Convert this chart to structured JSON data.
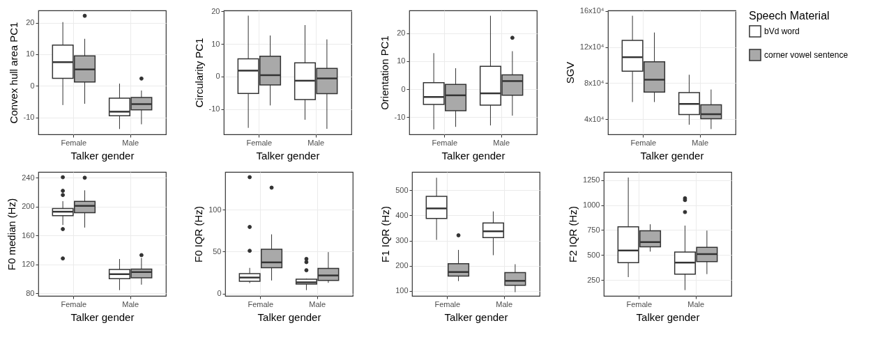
{
  "chart_data": [
    {
      "type": "box",
      "categories": [
        "Female",
        "Male"
      ],
      "xlabel": "Talker gender",
      "ylabel": "Convex hull area PC1",
      "ylim": [
        -15.4,
        23.9
      ],
      "yticks": [
        -10,
        0,
        10,
        20
      ],
      "grid": true,
      "legend": "right",
      "legend_title": "Speech Material",
      "series": [
        {
          "name": "bVd word",
          "color": "#ffffff",
          "boxes": [
            {
              "low": -6.1,
              "q1": 2.4,
              "median": 7.5,
              "q3": 12.9,
              "high": 20.2
            },
            {
              "low": -13.7,
              "q1": -9.5,
              "median": -8.2,
              "q3": -3.9,
              "high": 0.7
            }
          ]
        },
        {
          "name": "corner vowel sentence",
          "color": "#a9a9a9",
          "boxes": [
            {
              "low": -5.7,
              "q1": 1.2,
              "median": 5.2,
              "q3": 9.5,
              "high": 14.9,
              "outliers": [
                22.2
              ]
            },
            {
              "low": -12.2,
              "q1": -7.6,
              "median": -5.8,
              "q3": -3.7,
              "high": -1.5,
              "outliers": [
                2.3
              ]
            }
          ]
        }
      ]
    },
    {
      "type": "box",
      "categories": [
        "Female",
        "Male"
      ],
      "xlabel": "Talker gender",
      "ylabel": "Circularity PC1",
      "ylim": [
        -17.8,
        20.3
      ],
      "yticks": [
        -10,
        0,
        10,
        20
      ],
      "grid": true,
      "series": [
        {
          "color": "#ffffff",
          "boxes": [
            {
              "low": -15.8,
              "q1": -5.2,
              "median": 1.8,
              "q3": 5.4,
              "high": 18.7
            },
            {
              "low": -13.3,
              "q1": -7.1,
              "median": -1.3,
              "q3": 4.2,
              "high": 15.8
            }
          ]
        },
        {
          "color": "#a9a9a9",
          "boxes": [
            {
              "low": -8.9,
              "q1": -2.6,
              "median": 0.4,
              "q3": 6.2,
              "high": 12.6
            },
            {
              "low": -16.1,
              "q1": -5.3,
              "median": -0.6,
              "q3": 2.5,
              "high": 11.4
            }
          ]
        }
      ]
    },
    {
      "type": "box",
      "categories": [
        "Female",
        "Male"
      ],
      "xlabel": "Talker gender",
      "ylabel": "Orientation PC1",
      "ylim": [
        -16.2,
        28.2
      ],
      "yticks": [
        -10,
        0,
        10,
        20
      ],
      "grid": true,
      "series": [
        {
          "color": "#ffffff",
          "boxes": [
            {
              "low": -14.4,
              "q1": -5.5,
              "median": -2.8,
              "q3": 2.3,
              "high": 12.9
            },
            {
              "low": -13.0,
              "q1": -5.7,
              "median": -1.5,
              "q3": 8.2,
              "high": 26.3
            }
          ]
        },
        {
          "color": "#a9a9a9",
          "boxes": [
            {
              "low": -13.5,
              "q1": -7.7,
              "median": -2.2,
              "q3": 1.7,
              "high": 7.5
            },
            {
              "low": -9.5,
              "q1": -2.2,
              "median": 2.9,
              "q3": 5.1,
              "high": 13.6,
              "outliers": [
                18.4
              ]
            }
          ]
        }
      ]
    },
    {
      "type": "box",
      "categories": [
        "Female",
        "Male"
      ],
      "xlabel": "Talker gender",
      "ylabel": "SGV",
      "ylim": [
        23100,
        160700
      ],
      "yticks": [
        {
          "value": 40000,
          "label": "4x10⁴"
        },
        {
          "value": 80000,
          "label": "8x10⁴"
        },
        {
          "value": 120000,
          "label": "12x10⁴"
        },
        {
          "value": 160000,
          "label": "16x10⁴"
        }
      ],
      "grid": true,
      "series": [
        {
          "color": "#ffffff",
          "boxes": [
            {
              "low": 59000,
              "q1": 93300,
              "median": 108800,
              "q3": 127400,
              "high": 154800
            },
            {
              "low": 33800,
              "q1": 45200,
              "median": 56900,
              "q3": 69500,
              "high": 89300
            }
          ]
        },
        {
          "color": "#a9a9a9",
          "boxes": [
            {
              "low": 59000,
              "q1": 70000,
              "median": 83800,
              "q3": 103600,
              "high": 136200
            },
            {
              "low": 29000,
              "q1": 40500,
              "median": 45500,
              "q3": 56000,
              "high": 72900
            }
          ]
        }
      ]
    },
    {
      "type": "box",
      "categories": [
        "Female",
        "Male"
      ],
      "xlabel": "Talker gender",
      "ylabel": "F0 median (Hz)",
      "ylim": [
        76.4,
        248
      ],
      "yticks": [
        80,
        120,
        160,
        200,
        240
      ],
      "grid": true,
      "series": [
        {
          "color": "#ffffff",
          "boxes": [
            {
              "low": 174.6,
              "q1": 187.6,
              "median": 193.0,
              "q3": 197.4,
              "high": 207.6,
              "outliers": [
                240.7,
                221.9,
                216.1,
                168.9,
                128.3
              ]
            },
            {
              "low": 84.4,
              "q1": 100.3,
              "median": 106.5,
              "q3": 113,
              "high": 127.5
            }
          ]
        },
        {
          "color": "#a9a9a9",
          "boxes": [
            {
              "low": 171.0,
              "q1": 191.7,
              "median": 201.1,
              "q3": 207.3,
              "high": 222.6,
              "outliers": [
                240
              ]
            },
            {
              "low": 92.0,
              "q1": 101.4,
              "median": 109.4,
              "q3": 113.4,
              "high": 129,
              "outliers": [
                132.9
              ]
            }
          ]
        }
      ]
    },
    {
      "type": "box",
      "categories": [
        "Female",
        "Male"
      ],
      "xlabel": "Talker gender",
      "ylabel": "F0 IQR (Hz)",
      "ylim": [
        -2.8,
        145
      ],
      "yticks": [
        0,
        50,
        100
      ],
      "grid": true,
      "series": [
        {
          "color": "#ffffff",
          "boxes": [
            {
              "low": 12.5,
              "q1": 14.7,
              "median": 19.1,
              "q3": 23.8,
              "high": 30.6,
              "outliers": [
                138.8,
                79.4,
                51
              ]
            },
            {
              "low": 4.1,
              "q1": 11.3,
              "median": 13.4,
              "q3": 17.2,
              "high": 17.8,
              "outliers": [
                41.3,
                37.5,
                27.8
              ]
            }
          ]
        },
        {
          "color": "#a9a9a9",
          "boxes": [
            {
              "low": 15.6,
              "q1": 30.9,
              "median": 37.2,
              "q3": 52.8,
              "high": 70.6,
              "outliers": [
                126.3
              ]
            },
            {
              "low": 12.8,
              "q1": 15.6,
              "median": 21.6,
              "q3": 30,
              "high": 49.4
            }
          ]
        }
      ]
    },
    {
      "type": "box",
      "categories": [
        "Female",
        "Male"
      ],
      "xlabel": "Talker gender",
      "ylabel": "F1 IQR (Hz)",
      "ylim": [
        80,
        573
      ],
      "yticks": [
        100,
        200,
        300,
        400,
        500
      ],
      "grid": true,
      "series": [
        {
          "color": "#ffffff",
          "boxes": [
            {
              "low": 303,
              "q1": 388,
              "median": 428,
              "q3": 476,
              "high": 550
            },
            {
              "low": 242,
              "q1": 312,
              "median": 337,
              "q3": 370,
              "high": 416
            }
          ]
        },
        {
          "color": "#a9a9a9",
          "boxes": [
            {
              "low": 139,
              "q1": 159,
              "median": 175,
              "q3": 208,
              "high": 263,
              "outliers": [
                321
              ]
            },
            {
              "low": 95,
              "q1": 122,
              "median": 140,
              "q3": 173,
              "high": 206
            }
          ]
        }
      ]
    },
    {
      "type": "box",
      "categories": [
        "Female",
        "Male"
      ],
      "xlabel": "Talker gender",
      "ylabel": "F2 IQR (Hz)",
      "ylim": [
        92,
        1331
      ],
      "yticks": [
        250,
        500,
        750,
        1000,
        1250
      ],
      "grid": true,
      "series": [
        {
          "color": "#ffffff",
          "boxes": [
            {
              "low": 280,
              "q1": 425,
              "median": 546,
              "q3": 783,
              "high": 1276
            },
            {
              "low": 150,
              "q1": 310,
              "median": 425,
              "q3": 530,
              "high": 795,
              "outliers": [
                1068,
                1050,
                930
              ]
            }
          ]
        },
        {
          "color": "#a9a9a9",
          "boxes": [
            {
              "low": 535,
              "q1": 583,
              "median": 630,
              "q3": 742,
              "high": 808
            },
            {
              "low": 310,
              "q1": 435,
              "median": 510,
              "q3": 578,
              "high": 745
            }
          ]
        }
      ]
    }
  ]
}
